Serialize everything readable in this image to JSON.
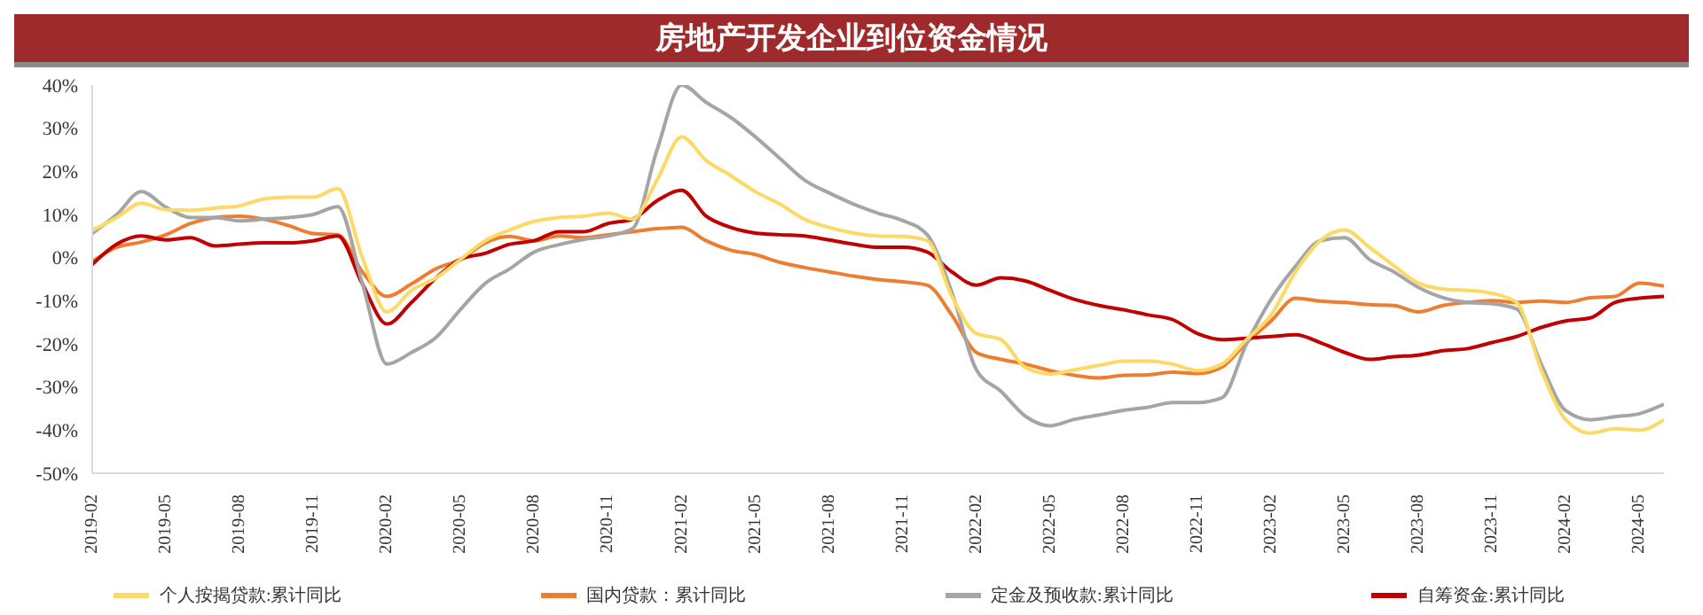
{
  "chart_data": {
    "type": "line",
    "title": "房地产开发企业到位资金情况",
    "categories": [
      "2019-02",
      null,
      null,
      "2019-05",
      null,
      null,
      "2019-08",
      null,
      null,
      "2019-11",
      null,
      null,
      "2020-02",
      null,
      null,
      "2020-05",
      null,
      null,
      "2020-08",
      null,
      null,
      "2020-11",
      null,
      null,
      "2021-02",
      null,
      null,
      "2021-05",
      null,
      null,
      "2021-08",
      null,
      null,
      "2021-11",
      null,
      null,
      "2022-02",
      null,
      null,
      "2022-05",
      null,
      null,
      "2022-08",
      null,
      null,
      "2022-11",
      null,
      null,
      "2023-02",
      null,
      null,
      "2023-05",
      null,
      null,
      "2023-08",
      null,
      null,
      "2023-11",
      null,
      null,
      "2024-02",
      null,
      null,
      "2024-05",
      null
    ],
    "series": [
      {
        "name": "国内贷款：累计同比",
        "color": "#ed7d31",
        "values": [
          -0.9,
          2.4,
          3.6,
          5.3,
          7.9,
          9.3,
          9.6,
          8.9,
          7.4,
          5.6,
          5.3,
          -3.3,
          -9,
          -6.1,
          -2.6,
          -0.4,
          3.4,
          4.9,
          3.9,
          5,
          4.6,
          5.3,
          6,
          6.7,
          7,
          3.9,
          1.7,
          0.7,
          -1.1,
          -2.3,
          -3.3,
          -4.3,
          -5.1,
          -5.6,
          -6.4,
          -13.3,
          -22,
          -23.6,
          -24.7,
          -26.2,
          -27.3,
          -27.9,
          -27.3,
          -27.2,
          -26.6,
          -26.9,
          -25.4,
          -19.7,
          -14.7,
          -9.4,
          -10.1,
          -10.4,
          -10.9,
          -11.1,
          -12.6,
          -11.1,
          -10.4,
          -10,
          -10.4,
          -10.1,
          -10.4,
          -9.3,
          -9,
          -5.9,
          -6.6
        ]
      },
      {
        "name": "自筹资金:累计同比",
        "color": "#c00000",
        "values": [
          -1.6,
          3.1,
          5,
          4.1,
          4.6,
          2.7,
          3.1,
          3.4,
          3.4,
          3.9,
          5,
          -6.1,
          -15.4,
          -10.4,
          -4.7,
          -0.4,
          1,
          3.1,
          3.9,
          6,
          6,
          7.9,
          8.9,
          13.2,
          15.6,
          9.6,
          7,
          5.7,
          5.3,
          5,
          4.1,
          3.1,
          2.4,
          2.4,
          1.3,
          -3.3,
          -6.4,
          -4.7,
          -5.4,
          -7.6,
          -9.7,
          -11.1,
          -12.1,
          -13.3,
          -14.4,
          -17.6,
          -19,
          -18.7,
          -18.3,
          -17.9,
          -19.7,
          -22,
          -23.6,
          -23,
          -22.6,
          -21.6,
          -21.1,
          -19.7,
          -18.3,
          -16.2,
          -14.7,
          -14,
          -10.4,
          -9.4,
          -9
        ]
      },
      {
        "name": "定金及预收款:累计同比",
        "color": "#a5a5a5",
        "values": [
          5.6,
          10,
          15.3,
          11.7,
          9.3,
          9.3,
          8.5,
          8.9,
          9.3,
          10,
          11.8,
          -6,
          -24.7,
          -22,
          -18.5,
          -12,
          -6,
          -2.6,
          1.3,
          3,
          4.2,
          5,
          6.7,
          25,
          40,
          36,
          32.5,
          28,
          23,
          18,
          15,
          12.4,
          10.3,
          8.6,
          5.3,
          -8,
          -26,
          -31,
          -36.8,
          -39,
          -37.5,
          -36.5,
          -35.4,
          -34.7,
          -33.6,
          -33.6,
          -32.5,
          -20,
          -9.7,
          -2,
          3.9,
          4.6,
          -0.4,
          -3.3,
          -6.9,
          -9.3,
          -10.4,
          -10.7,
          -11.9,
          -24.7,
          -35.5,
          -37.6,
          -36.9,
          -36.2,
          -34
        ]
      },
      {
        "name": "个人按揭贷款:累计同比",
        "color": "#ffd966",
        "values": [
          6.3,
          9.3,
          12.6,
          11.1,
          11,
          11.5,
          12,
          13.6,
          14,
          14,
          16,
          0,
          -12.6,
          -7.6,
          -4.7,
          -0.4,
          3.9,
          6.4,
          8.4,
          9.3,
          9.6,
          10.3,
          8.9,
          18,
          28,
          22.5,
          19,
          15.3,
          12.4,
          8.9,
          7,
          5.7,
          5,
          4.9,
          3.9,
          -9,
          -17.6,
          -19,
          -25.5,
          -27,
          -26,
          -25,
          -24,
          -24,
          -24.7,
          -26.2,
          -24.7,
          -19,
          -13.3,
          -3.3,
          3.9,
          6.4,
          2.4,
          -1.9,
          -5.9,
          -7.3,
          -7.6,
          -8.3,
          -10.4,
          -26,
          -37.6,
          -40.7,
          -39.7,
          -40,
          -37.6
        ]
      }
    ],
    "ylim": [
      -50,
      40
    ],
    "yticks": [
      {
        "value": -50,
        "label": "-50%"
      },
      {
        "value": -40,
        "label": "-40%"
      },
      {
        "value": -30,
        "label": "-30%"
      },
      {
        "value": -20,
        "label": "-20%"
      },
      {
        "value": -10,
        "label": "-10%"
      },
      {
        "value": 0,
        "label": "0%"
      },
      {
        "value": 10,
        "label": "10%"
      },
      {
        "value": 20,
        "label": "20%"
      },
      {
        "value": 30,
        "label": "30%"
      },
      {
        "value": 40,
        "label": "40%"
      }
    ],
    "grid": false,
    "legend": "bottom",
    "marker": "none",
    "line_style": "solid"
  }
}
